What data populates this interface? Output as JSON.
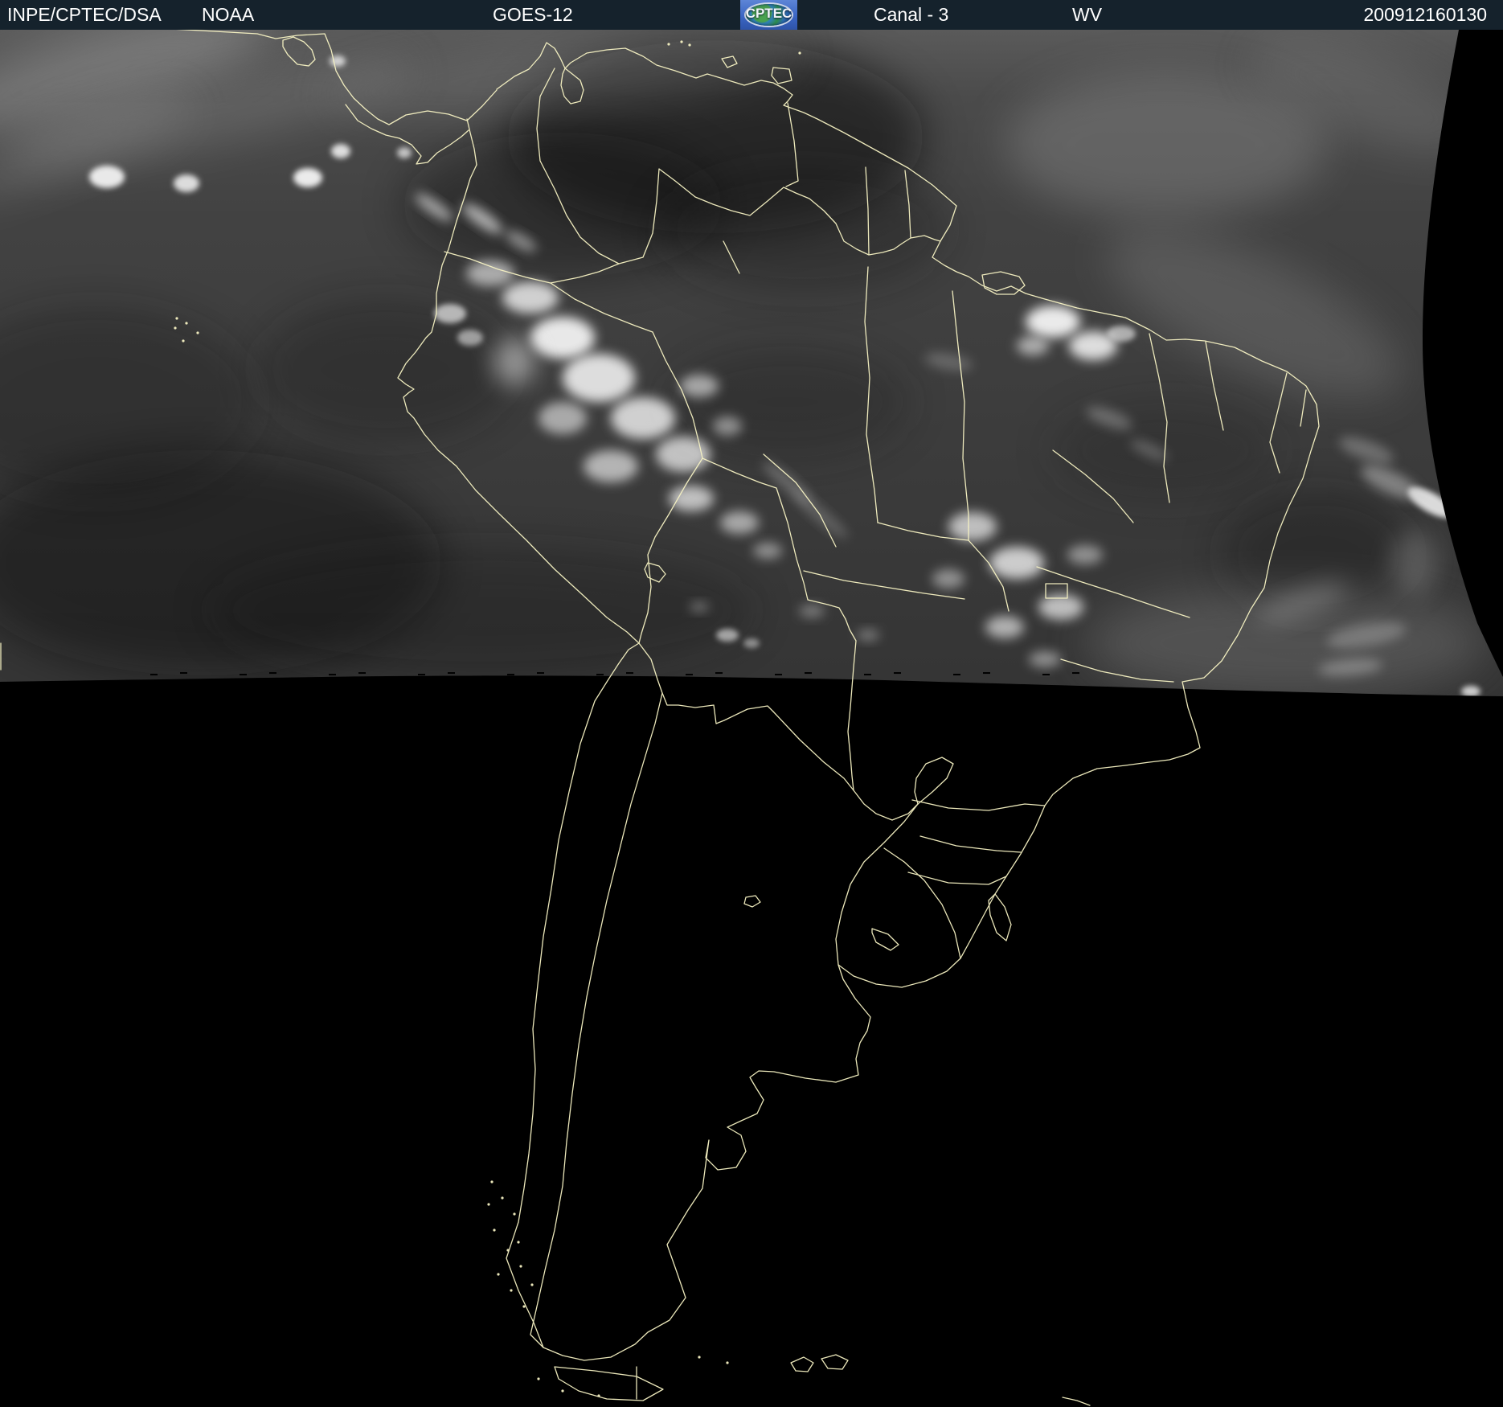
{
  "header": {
    "agency": "INPE/CPTEC/DSA",
    "noaa": "NOAA",
    "satellite": "GOES-12",
    "logo_text": "CPTEC",
    "channel": "Canal - 3",
    "band": "WV",
    "timestamp": "200912160130",
    "bg_color": "#15222c",
    "text_color": "#ffffff",
    "logo_bg_color": "#3b66c4"
  },
  "image": {
    "description": "GOES-12 water vapor channel satellite image of South America",
    "region": "South America",
    "border_color": "#f8f4c4",
    "space_color": "#000000"
  }
}
